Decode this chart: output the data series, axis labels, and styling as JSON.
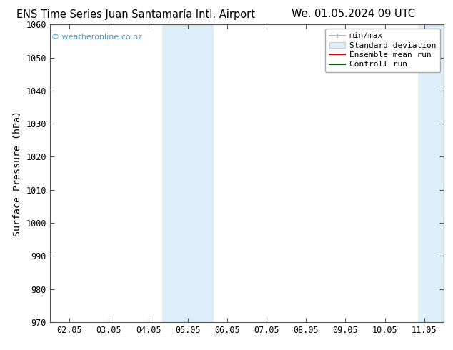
{
  "title_left": "ENS Time Series Juan Santamaría Intl. Airport",
  "title_right": "We. 01.05.2024 09 UTC",
  "ylabel": "Surface Pressure (hPa)",
  "ylim": [
    970,
    1060
  ],
  "yticks": [
    970,
    980,
    990,
    1000,
    1010,
    1020,
    1030,
    1040,
    1050,
    1060
  ],
  "xtick_labels": [
    "02.05",
    "03.05",
    "04.05",
    "05.05",
    "06.05",
    "07.05",
    "08.05",
    "09.05",
    "10.05",
    "11.05"
  ],
  "xtick_positions": [
    0,
    1,
    2,
    3,
    4,
    5,
    6,
    7,
    8,
    9
  ],
  "xmin": -0.5,
  "xmax": 9.5,
  "watermark": "© weatheronline.co.nz",
  "watermark_color": "#4499cc",
  "bg_color": "#ffffff",
  "plot_bg_color": "#ffffff",
  "shaded_bands": [
    {
      "x_start": 2.35,
      "x_end": 3.0,
      "color": "#ddeef8"
    },
    {
      "x_start": 3.0,
      "x_end": 3.65,
      "color": "#ddeef8"
    },
    {
      "x_start": 8.85,
      "x_end": 9.2,
      "color": "#ddeef8"
    },
    {
      "x_start": 9.2,
      "x_end": 9.55,
      "color": "#ddeef8"
    }
  ],
  "legend_items": [
    {
      "label": "min/max",
      "color": "#aaaaaa",
      "type": "minmax"
    },
    {
      "label": "Standard deviation",
      "color": "#ddeef8",
      "type": "band"
    },
    {
      "label": "Ensemble mean run",
      "color": "#dd0000",
      "type": "line"
    },
    {
      "label": "Controll run",
      "color": "#006600",
      "type": "line"
    }
  ],
  "title_fontsize": 10.5,
  "tick_fontsize": 8.5,
  "ylabel_fontsize": 9.5,
  "legend_fontsize": 8
}
